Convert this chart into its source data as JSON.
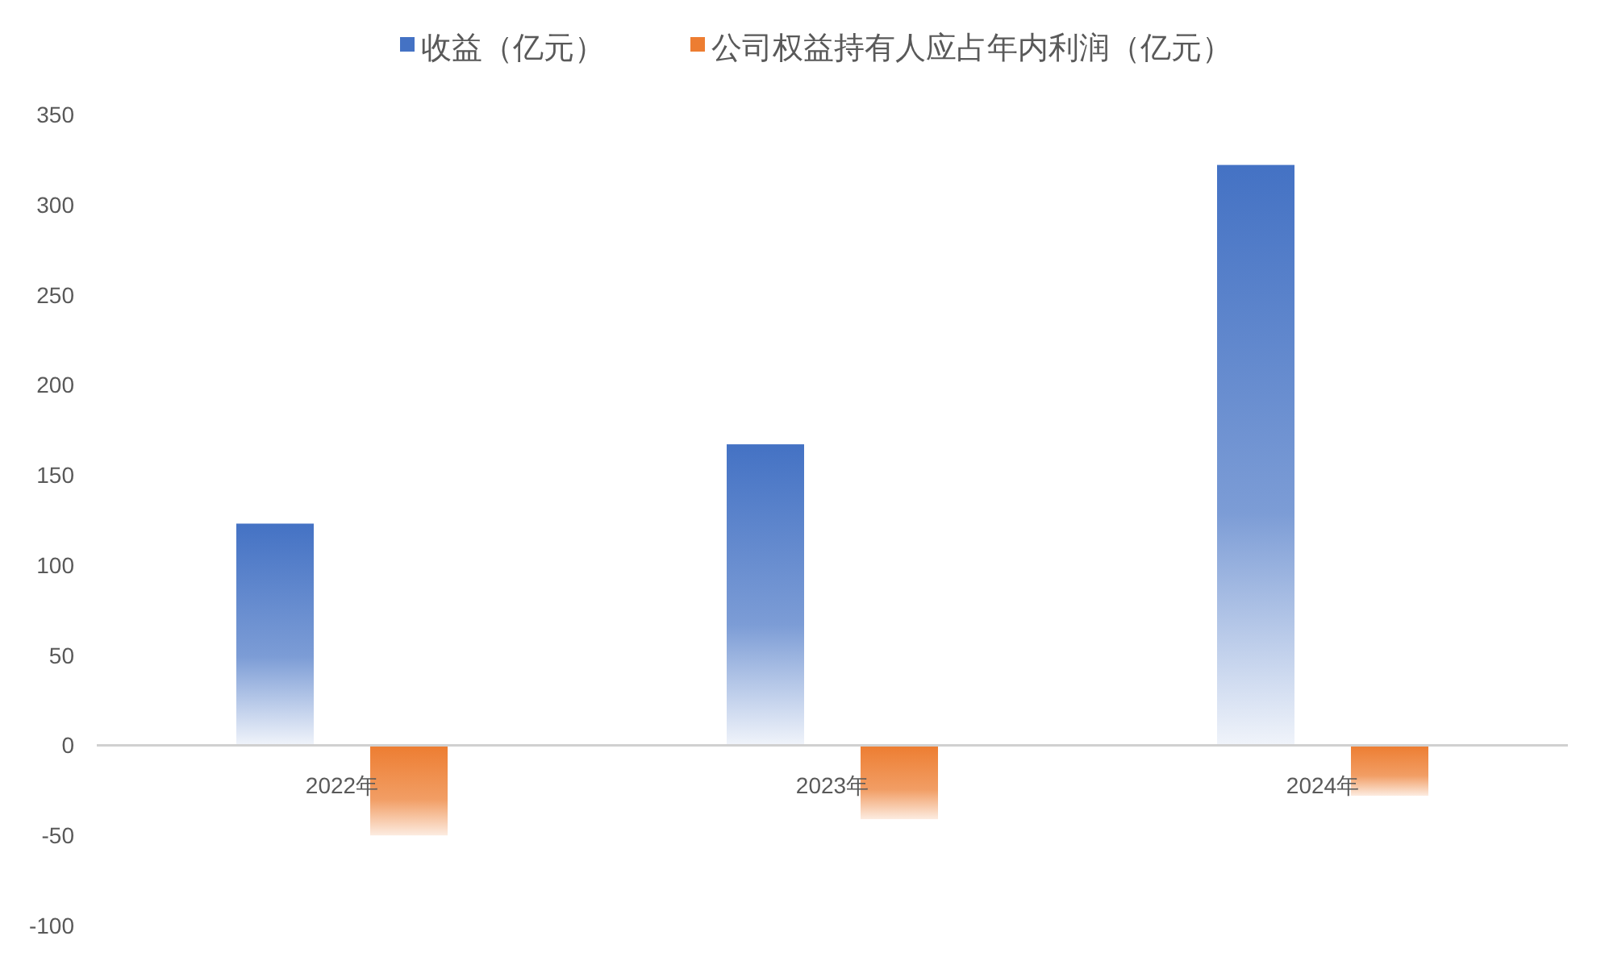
{
  "chart_data": {
    "type": "bar",
    "categories": [
      "2022年",
      "2023年",
      "2024年"
    ],
    "series": [
      {
        "name": "收益（亿元）",
        "color": "#4472c4",
        "values": [
          123,
          167,
          322
        ]
      },
      {
        "name": "公司权益持有人应占年内利润（亿元）",
        "color": "#ed7d31",
        "values": [
          -50,
          -41,
          -28
        ]
      }
    ],
    "ylim": [
      -100,
      350
    ],
    "yticks": [
      -100,
      -50,
      0,
      50,
      100,
      150,
      200,
      250,
      300,
      350
    ],
    "grid": false,
    "legend": "top"
  }
}
